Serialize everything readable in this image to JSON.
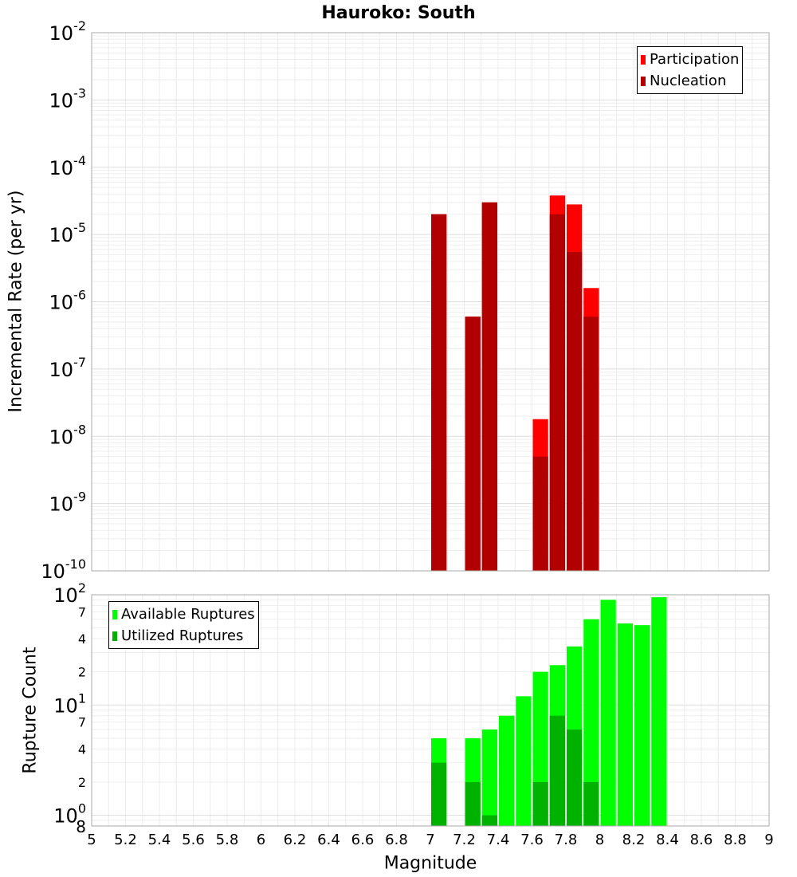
{
  "page_title": "Hauroko: South",
  "x_axis_label": "Magnitude",
  "chart_data": [
    {
      "type": "bar",
      "title": "Hauroko: South",
      "xlabel": "Magnitude",
      "ylabel": "Incremental Rate (per yr)",
      "yscale": "log",
      "xlim": [
        5,
        9
      ],
      "ylim": [
        1e-10,
        0.01
      ],
      "legend_position": "top-right",
      "series": [
        {
          "name": "Participation",
          "color": "#ff0000",
          "x": [
            7.05,
            7.25,
            7.35,
            7.65,
            7.75,
            7.85,
            7.95
          ],
          "values": [
            2e-05,
            6e-07,
            3e-05,
            1.8e-08,
            3.8e-05,
            2.8e-05,
            1.6e-06
          ]
        },
        {
          "name": "Nucleation",
          "color": "#b20000",
          "x": [
            7.05,
            7.25,
            7.35,
            7.65,
            7.75,
            7.85,
            7.95
          ],
          "values": [
            2e-05,
            6e-07,
            3e-05,
            5e-09,
            2e-05,
            5.5e-06,
            6e-07
          ]
        }
      ],
      "y_ticks": [
        {
          "base": "10",
          "exp": "-10",
          "value": 1e-10
        },
        {
          "base": "10",
          "exp": "-9",
          "value": 1e-09
        },
        {
          "base": "10",
          "exp": "-8",
          "value": 1e-08
        },
        {
          "base": "10",
          "exp": "-7",
          "value": 1e-07
        },
        {
          "base": "10",
          "exp": "-6",
          "value": 1e-06
        },
        {
          "base": "10",
          "exp": "-5",
          "value": 1e-05
        },
        {
          "base": "10",
          "exp": "-4",
          "value": 0.0001
        },
        {
          "base": "10",
          "exp": "-3",
          "value": 0.001
        },
        {
          "base": "10",
          "exp": "-2",
          "value": 0.01
        }
      ]
    },
    {
      "type": "bar",
      "title": "",
      "xlabel": "Magnitude",
      "ylabel": "Rupture Count",
      "yscale": "log",
      "xlim": [
        5,
        9
      ],
      "ylim": [
        0.8,
        100
      ],
      "legend_position": "top-left",
      "series": [
        {
          "name": "Available Ruptures",
          "color": "#00ff00",
          "x": [
            7.05,
            7.25,
            7.35,
            7.45,
            7.55,
            7.65,
            7.75,
            7.85,
            7.95,
            8.05,
            8.15,
            8.25,
            8.35
          ],
          "values": [
            5,
            5,
            6,
            8,
            12,
            20,
            23,
            34,
            60,
            90,
            55,
            53,
            95
          ]
        },
        {
          "name": "Utilized Ruptures",
          "color": "#00b200",
          "x": [
            7.05,
            7.25,
            7.35,
            7.65,
            7.75,
            7.85,
            7.95
          ],
          "values": [
            3,
            2,
            1,
            2,
            8,
            6,
            2
          ]
        }
      ],
      "y_ticks": [
        {
          "base": "10",
          "exp": "0",
          "value": 1
        },
        {
          "base": "",
          "exp": "",
          "label": "2",
          "value": 2
        },
        {
          "base": "",
          "exp": "",
          "label": "4",
          "value": 4
        },
        {
          "base": "",
          "exp": "",
          "label": "7",
          "value": 7
        },
        {
          "base": "10",
          "exp": "1",
          "value": 10
        },
        {
          "base": "",
          "exp": "",
          "label": "2",
          "value": 20
        },
        {
          "base": "",
          "exp": "",
          "label": "4",
          "value": 40
        },
        {
          "base": "",
          "exp": "",
          "label": "7",
          "value": 70
        },
        {
          "base": "10",
          "exp": "2",
          "value": 100
        }
      ],
      "extra_ticks": [
        {
          "label": "8",
          "value": 0.8
        }
      ]
    }
  ],
  "x_ticks": [
    "5",
    "5.2",
    "5.4",
    "5.6",
    "5.8",
    "6",
    "6.2",
    "6.4",
    "6.6",
    "6.8",
    "7",
    "7.2",
    "7.4",
    "7.6",
    "7.8",
    "8",
    "8.2",
    "8.4",
    "8.6",
    "8.8",
    "9"
  ],
  "x_tick_values": [
    5,
    5.2,
    5.4,
    5.6,
    5.8,
    6,
    6.2,
    6.4,
    6.6,
    6.8,
    7,
    7.2,
    7.4,
    7.6,
    7.8,
    8,
    8.2,
    8.4,
    8.6,
    8.8,
    9
  ],
  "bar_width": 0.1
}
